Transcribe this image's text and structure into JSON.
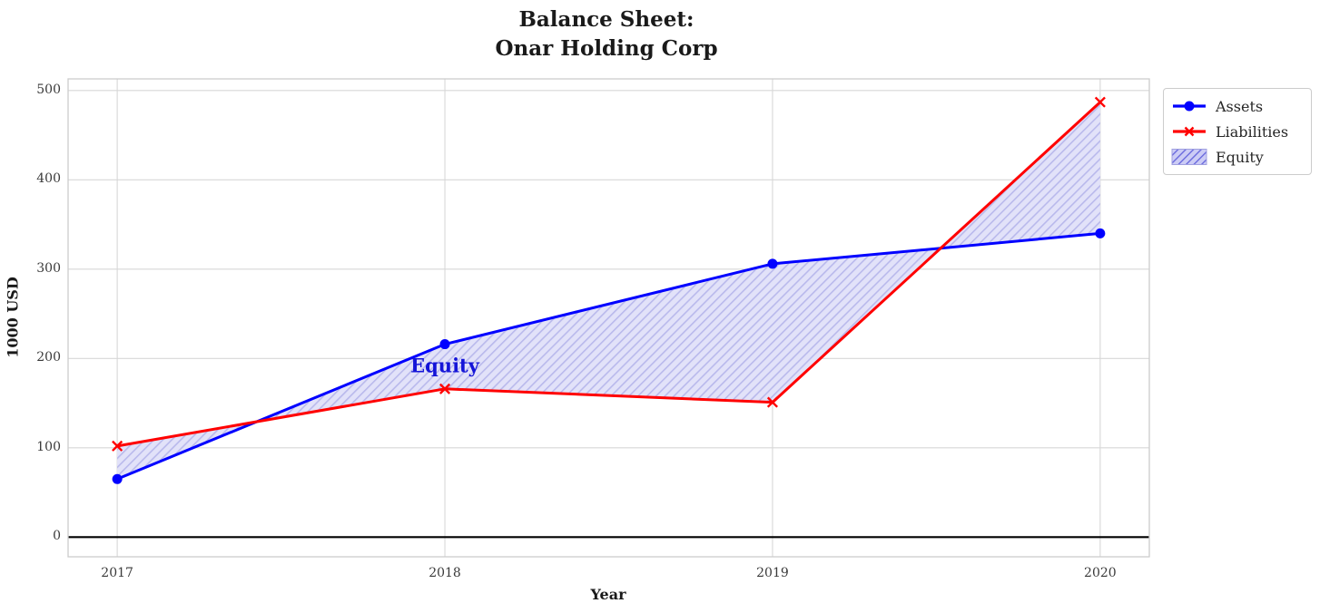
{
  "chart_data": {
    "type": "line",
    "title": "Balance Sheet:\nOnar Holding Corp",
    "title_lines": [
      "Balance Sheet:",
      "Onar Holding Corp"
    ],
    "xlabel": "Year",
    "ylabel": "1000 USD",
    "x": [
      2017,
      2018,
      2019,
      2020
    ],
    "x_tick_labels": [
      "2017",
      "2018",
      "2019",
      "2020"
    ],
    "y_ticks": [
      0,
      100,
      200,
      300,
      400,
      500
    ],
    "xlim": [
      2016.85,
      2020.15
    ],
    "ylim": [
      -22,
      513
    ],
    "grid": true,
    "grid_color": "#d7d7d7",
    "axes_border_color": "#cccccc",
    "zero_line": {
      "y": 0,
      "color": "#000000"
    },
    "series": [
      {
        "name": "Assets",
        "color": "#0000ff",
        "marker": "circle",
        "values": [
          65,
          216,
          306,
          340
        ]
      },
      {
        "name": "Liabilities",
        "color": "#ff0000",
        "marker": "x",
        "values": [
          102,
          166,
          151,
          487
        ]
      }
    ],
    "fill_between": {
      "label": "Equity",
      "between": [
        "Assets",
        "Liabilities"
      ],
      "face_color": "#e2e2f9",
      "hatch_color": "#b9b9ec",
      "legend_face_color": "#ccccf5",
      "legend_hatch_color": "#6969dd"
    },
    "annotation": {
      "text": "Equity",
      "x": 2018,
      "y": 192,
      "color": "#1414d8"
    },
    "legend": {
      "position": "upper-right-outside",
      "entries": [
        "Assets",
        "Liabilities",
        "Equity"
      ]
    }
  }
}
